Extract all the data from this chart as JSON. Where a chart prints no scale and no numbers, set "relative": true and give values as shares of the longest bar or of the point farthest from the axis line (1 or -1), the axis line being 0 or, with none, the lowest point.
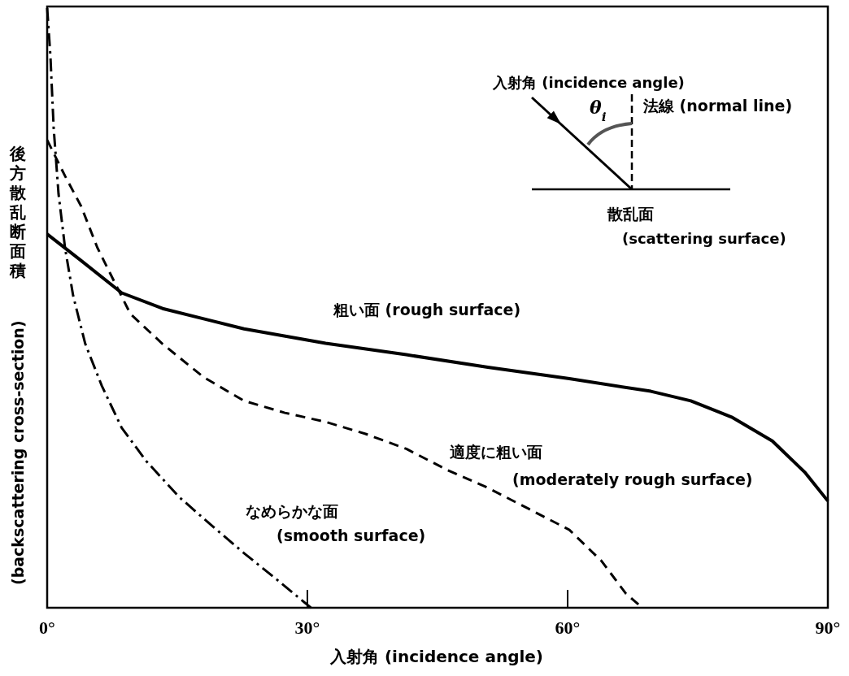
{
  "chart_data": {
    "type": "line",
    "relative": true,
    "xlabel": "入射角 (incidence angle)",
    "ylabel": "後方散乱断面積 (backscattering cross-section)",
    "xlim": [
      0,
      90
    ],
    "xticks": [
      {
        "value": 0,
        "label": "0°"
      },
      {
        "value": 30,
        "label": "30°"
      },
      {
        "value": 60,
        "label": "60°"
      },
      {
        "value": 90,
        "label": "90°"
      }
    ],
    "series": [
      {
        "name": "粗い面 (rough surface)",
        "color": "#000000",
        "line_style": "solid",
        "x": [
          0,
          3.9,
          8.6,
          13.3,
          22.7,
          32.1,
          41.4,
          50.8,
          60.2,
          69.6,
          74.2,
          78.9,
          83.6,
          87.4,
          90
        ],
        "values": [
          0.623,
          0.579,
          0.525,
          0.499,
          0.465,
          0.441,
          0.422,
          0.401,
          0.382,
          0.361,
          0.345,
          0.318,
          0.278,
          0.225,
          0.178
        ]
      },
      {
        "name": "適度に粗い面 (moderately rough surface)",
        "color": "#000000",
        "line_style": "dashed",
        "x": [
          0,
          2.06,
          3.9,
          5.8,
          7.7,
          9.6,
          13.3,
          18.0,
          22.7,
          27.4,
          32.1,
          36.7,
          41.4,
          46.1,
          50.8,
          55.5,
          60.2,
          63.9,
          66.7,
          68.6
        ],
        "values": [
          0.78,
          0.72,
          0.67,
          0.6,
          0.545,
          0.49,
          0.44,
          0.385,
          0.345,
          0.325,
          0.31,
          0.29,
          0.265,
          0.23,
          0.2,
          0.165,
          0.13,
          0.078,
          0.024,
          0
        ]
      },
      {
        "name": "なめらかな面 (smooth surface)",
        "color": "#000000",
        "line_style": "dashdot",
        "x": [
          0,
          0.375,
          0.75,
          1.31,
          2.06,
          3.0,
          4.4,
          6.3,
          8.6,
          11.4,
          15.2,
          18.9,
          22.7,
          26.4,
          30.4
        ],
        "values": [
          1.0,
          0.92,
          0.8,
          0.69,
          0.6,
          0.52,
          0.44,
          0.37,
          0.3,
          0.245,
          0.185,
          0.138,
          0.091,
          0.048,
          0
        ]
      }
    ],
    "annotations": [
      "入射角 (incidence angle)",
      "θ$_{i}$",
      "法線 (normal line)",
      "散乱面",
      "(scattering surface)"
    ]
  }
}
